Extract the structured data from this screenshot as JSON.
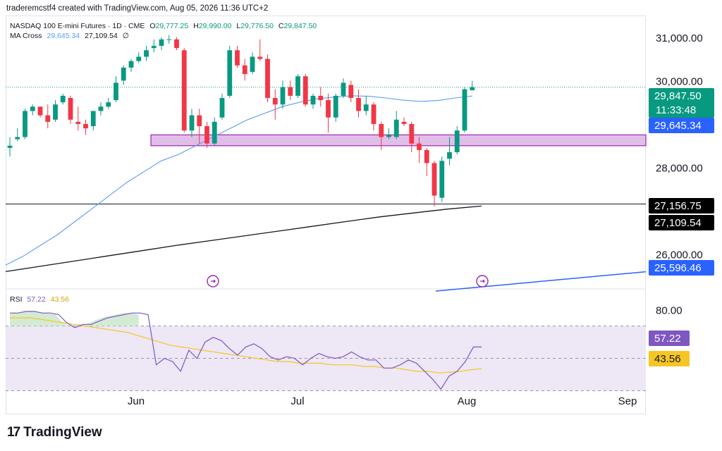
{
  "header": {
    "text": "traderemcstf4 created with TradingView.com, Aug 05, 2026 11:36 UTC+2"
  },
  "legend": {
    "symbol": "NASDAQ 100 E-mini Futures · 1D · CME",
    "o_label": "O",
    "o_value": "29,777.25",
    "h_label": "H",
    "h_value": "29,990.00",
    "l_label": "L",
    "l_value": "29,776.50",
    "c_label": "C",
    "c_value": "29,847.50",
    "ma_label": "MA Cross",
    "ma_fast": "29,645.34",
    "ma_slow": "27,109.54",
    "ma_icon": "eye-off-icon"
  },
  "rsi_legend": {
    "label": "RSI",
    "rsi": "57.22",
    "ma": "43.56"
  },
  "footer": {
    "logo_text": "TradingView",
    "logo_mark": "17"
  },
  "colors": {
    "up": "#089981",
    "down": "#f23645",
    "ma_fast": "#5b9cf6",
    "ma_slow": "#131722",
    "zone_fill": "#e1bee7",
    "zone_stroke": "#9c27b0",
    "trend": "#2962ff",
    "rsi": "#7e57c2",
    "rsi_ma": "#f7c624",
    "rsi_band": "#ede7f6",
    "price_label_bg": "#089981",
    "fast_label_bg": "#2962ff",
    "trend_label_bg": "#2962ff",
    "black_label_bg": "#000000",
    "rsi_label_bg": "#7e57c2",
    "rsi_ma_label_bg": "#f7c624"
  },
  "chart_data": [
    {
      "type": "candlestick",
      "title": "NASDAQ 100 E-mini Futures · 1D · CME",
      "x_ticks": [
        "Jun",
        "Jul",
        "Aug",
        "Sep"
      ],
      "y_ticks": [
        "26,000.00",
        "28,000.00",
        "31,000.00"
      ],
      "y_range": [
        25200,
        31500
      ],
      "candles": [
        {
          "o": 28450,
          "h": 28700,
          "l": 28250,
          "c": 28500
        },
        {
          "o": 28650,
          "h": 28900,
          "l": 28600,
          "c": 28700
        },
        {
          "o": 28700,
          "h": 29350,
          "l": 28650,
          "c": 29300
        },
        {
          "o": 29300,
          "h": 29450,
          "l": 29200,
          "c": 29400
        },
        {
          "o": 29400,
          "h": 29400,
          "l": 29150,
          "c": 29200
        },
        {
          "o": 29200,
          "h": 29450,
          "l": 28900,
          "c": 29050
        },
        {
          "o": 29100,
          "h": 29550,
          "l": 29050,
          "c": 29450
        },
        {
          "o": 29500,
          "h": 29700,
          "l": 29450,
          "c": 29650
        },
        {
          "o": 29600,
          "h": 29650,
          "l": 29000,
          "c": 29100
        },
        {
          "o": 29050,
          "h": 29400,
          "l": 28850,
          "c": 29000
        },
        {
          "o": 29000,
          "h": 29100,
          "l": 28750,
          "c": 28900
        },
        {
          "o": 28950,
          "h": 29300,
          "l": 28850,
          "c": 29300
        },
        {
          "o": 29300,
          "h": 29500,
          "l": 29200,
          "c": 29400
        },
        {
          "o": 29400,
          "h": 29600,
          "l": 29350,
          "c": 29500
        },
        {
          "o": 29550,
          "h": 30100,
          "l": 29500,
          "c": 29950
        },
        {
          "o": 30000,
          "h": 30350,
          "l": 29900,
          "c": 30300
        },
        {
          "o": 30300,
          "h": 30500,
          "l": 30200,
          "c": 30450
        },
        {
          "o": 30450,
          "h": 30650,
          "l": 30400,
          "c": 30550
        },
        {
          "o": 30550,
          "h": 30800,
          "l": 30450,
          "c": 30700
        },
        {
          "o": 30750,
          "h": 30950,
          "l": 30650,
          "c": 30800
        },
        {
          "o": 30800,
          "h": 31000,
          "l": 30700,
          "c": 30950
        },
        {
          "o": 30950,
          "h": 31050,
          "l": 30850,
          "c": 30950
        },
        {
          "o": 30950,
          "h": 31000,
          "l": 30700,
          "c": 30750
        },
        {
          "o": 30700,
          "h": 30750,
          "l": 28800,
          "c": 28850
        },
        {
          "o": 28850,
          "h": 29350,
          "l": 28700,
          "c": 29200
        },
        {
          "o": 29200,
          "h": 29350,
          "l": 28550,
          "c": 28950
        },
        {
          "o": 28950,
          "h": 29050,
          "l": 28450,
          "c": 28550
        },
        {
          "o": 28550,
          "h": 29150,
          "l": 28500,
          "c": 29050
        },
        {
          "o": 29150,
          "h": 29700,
          "l": 29100,
          "c": 29600
        },
        {
          "o": 29650,
          "h": 30800,
          "l": 29600,
          "c": 30700
        },
        {
          "o": 30700,
          "h": 30800,
          "l": 30300,
          "c": 30350
        },
        {
          "o": 30350,
          "h": 30500,
          "l": 30000,
          "c": 30150
        },
        {
          "o": 30200,
          "h": 30650,
          "l": 30150,
          "c": 30550
        },
        {
          "o": 30550,
          "h": 30950,
          "l": 30450,
          "c": 30500
        },
        {
          "o": 30500,
          "h": 30600,
          "l": 29500,
          "c": 29600
        },
        {
          "o": 29600,
          "h": 29800,
          "l": 29100,
          "c": 29450
        },
        {
          "o": 29450,
          "h": 30000,
          "l": 29350,
          "c": 29850
        },
        {
          "o": 29850,
          "h": 30000,
          "l": 29550,
          "c": 29650
        },
        {
          "o": 29650,
          "h": 30150,
          "l": 29600,
          "c": 30100
        },
        {
          "o": 30100,
          "h": 30150,
          "l": 29400,
          "c": 29450
        },
        {
          "o": 29450,
          "h": 29700,
          "l": 29350,
          "c": 29650
        },
        {
          "o": 29650,
          "h": 29850,
          "l": 29400,
          "c": 29550
        },
        {
          "o": 29550,
          "h": 29700,
          "l": 28800,
          "c": 29150
        },
        {
          "o": 29150,
          "h": 29700,
          "l": 29050,
          "c": 29650
        },
        {
          "o": 29650,
          "h": 30050,
          "l": 29600,
          "c": 29950
        },
        {
          "o": 29900,
          "h": 30000,
          "l": 29500,
          "c": 29600
        },
        {
          "o": 29600,
          "h": 29800,
          "l": 29150,
          "c": 29300
        },
        {
          "o": 29300,
          "h": 29650,
          "l": 29200,
          "c": 29450
        },
        {
          "o": 29450,
          "h": 29500,
          "l": 28850,
          "c": 29000
        },
        {
          "o": 29000,
          "h": 29050,
          "l": 28400,
          "c": 28700
        },
        {
          "o": 28700,
          "h": 28900,
          "l": 28650,
          "c": 28750
        },
        {
          "o": 28700,
          "h": 29300,
          "l": 28650,
          "c": 29100
        },
        {
          "o": 29050,
          "h": 29150,
          "l": 28950,
          "c": 29000
        },
        {
          "o": 29000,
          "h": 29050,
          "l": 28350,
          "c": 28550
        },
        {
          "o": 28550,
          "h": 28700,
          "l": 28100,
          "c": 28400
        },
        {
          "o": 28400,
          "h": 28450,
          "l": 27800,
          "c": 28100
        },
        {
          "o": 28100,
          "h": 28150,
          "l": 27100,
          "c": 27350
        },
        {
          "o": 27300,
          "h": 28250,
          "l": 27200,
          "c": 28150
        },
        {
          "o": 28200,
          "h": 28700,
          "l": 28050,
          "c": 28350
        },
        {
          "o": 28350,
          "h": 28950,
          "l": 28300,
          "c": 28850
        },
        {
          "o": 28850,
          "h": 29850,
          "l": 28800,
          "c": 29800
        },
        {
          "o": 29777.25,
          "h": 29990,
          "l": 29776.5,
          "c": 29847.5
        }
      ],
      "ma_fast": [
        25750,
        25950,
        26200,
        26450,
        26750,
        27050,
        27350,
        27650,
        27900,
        28150,
        28300,
        28500,
        28700,
        28900,
        29100,
        29250,
        29400,
        29500,
        29580,
        29620,
        29650,
        29640,
        29600,
        29550,
        29520,
        29540,
        29600,
        29645
      ],
      "ma_slow": [
        25600,
        25720,
        25840,
        25960,
        26080,
        26200,
        26310,
        26420,
        26530,
        26640,
        26750,
        26860,
        26950,
        27040,
        27109.54
      ],
      "zone": {
        "low": 28500,
        "high": 28750
      },
      "horizontal_line": 27156.75,
      "price_labels": [
        {
          "text": "29,847.50",
          "sub": "11:33:48",
          "value": 29847.5,
          "kind": "price"
        },
        {
          "text": "29,645.34",
          "value": 29645.34,
          "kind": "fast"
        },
        {
          "text": "27,156.75",
          "value": 27156.75,
          "kind": "black"
        },
        {
          "text": "27,109.54",
          "value": 27109.54,
          "kind": "black"
        },
        {
          "text": "25,596.46",
          "value": 25596.46,
          "kind": "trend"
        }
      ],
      "clipped_tick": "30,000.00"
    },
    {
      "type": "line",
      "title": "RSI",
      "y_ticks": [
        "80.00"
      ],
      "y_range": [
        25,
        92
      ],
      "band": [
        30,
        70
      ],
      "rsi": [
        78,
        78,
        79,
        79,
        78,
        78,
        77,
        72,
        69,
        71,
        71,
        73,
        75,
        76,
        77,
        78,
        78,
        77,
        46,
        50,
        48,
        42,
        55,
        50,
        60,
        63,
        61,
        56,
        52,
        57,
        59,
        56,
        51,
        49,
        51,
        50,
        46,
        50,
        53,
        51,
        50,
        51,
        54,
        51,
        49,
        49,
        44,
        44,
        46,
        49,
        47,
        42,
        37,
        31,
        39,
        42,
        48,
        57,
        57
      ],
      "rsi_ma": [
        75,
        75,
        75,
        74,
        73,
        72,
        71,
        70,
        69,
        68,
        67,
        66,
        64,
        62,
        60,
        58,
        57,
        56,
        55,
        54,
        53,
        52,
        51,
        50,
        49,
        48,
        48,
        47,
        47,
        47,
        46,
        46,
        46,
        45,
        45,
        44,
        44,
        43,
        42,
        42,
        41,
        41.5,
        42,
        43,
        43.56
      ],
      "labels": [
        {
          "text": "57.22",
          "value": 57.22,
          "kind": "rsi"
        },
        {
          "text": "43.56",
          "value": 43.56,
          "kind": "rsi_ma"
        }
      ]
    }
  ]
}
